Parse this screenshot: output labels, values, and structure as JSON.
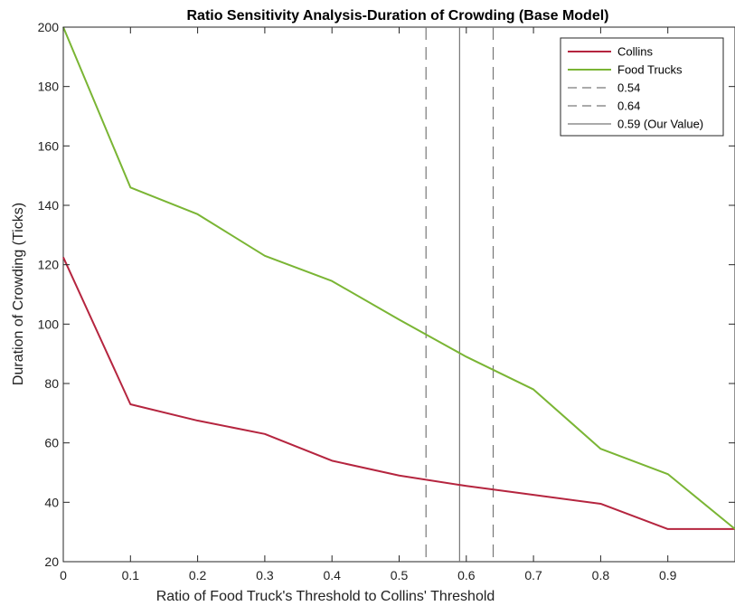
{
  "chart_data": {
    "type": "line",
    "title": "Ratio Sensitivity Analysis-Duration of Crowding (Base Model)",
    "xlabel": "Ratio of Food Truck's Threshold to Collins' Threshold",
    "ylabel": "Duration of Crowding (Ticks)",
    "xlim": [
      0,
      1
    ],
    "ylim": [
      20,
      200
    ],
    "xticks": [
      0,
      0.1,
      0.2,
      0.3,
      0.4,
      0.5,
      0.6,
      0.7,
      0.8,
      0.9
    ],
    "xtick_labels": [
      "0",
      "0.1",
      "0.2",
      "0.3",
      "0.4",
      "0.5",
      "0.6",
      "0.7",
      "0.8",
      "0.9"
    ],
    "yticks": [
      20,
      40,
      60,
      80,
      100,
      120,
      140,
      160,
      180,
      200
    ],
    "ytick_labels": [
      "20",
      "40",
      "60",
      "80",
      "100",
      "120",
      "140",
      "160",
      "180",
      "200"
    ],
    "grid": false,
    "legend_position": "top-right",
    "x": [
      0,
      0.1,
      0.2,
      0.3,
      0.4,
      0.5,
      0.6,
      0.7,
      0.8,
      0.9,
      1.0
    ],
    "series": [
      {
        "name": "Collins",
        "color": "#b5253f",
        "values": [
          122.5,
          73,
          67.5,
          63,
          54,
          49,
          45.5,
          42.5,
          39.5,
          31,
          31
        ]
      },
      {
        "name": " Food Trucks",
        "color": "#7ab534",
        "values": [
          200,
          146,
          137,
          123,
          114.5,
          101.5,
          89,
          78,
          58,
          49.5,
          31
        ]
      }
    ],
    "reference_lines": [
      {
        "name": "0.54",
        "x": 0.54,
        "style": "dashed",
        "color": "#777777"
      },
      {
        "name": "0.64",
        "x": 0.64,
        "style": "dashed",
        "color": "#777777"
      },
      {
        "name": "0.59 (Our Value)",
        "x": 0.59,
        "style": "solid",
        "color": "#777777"
      }
    ]
  }
}
